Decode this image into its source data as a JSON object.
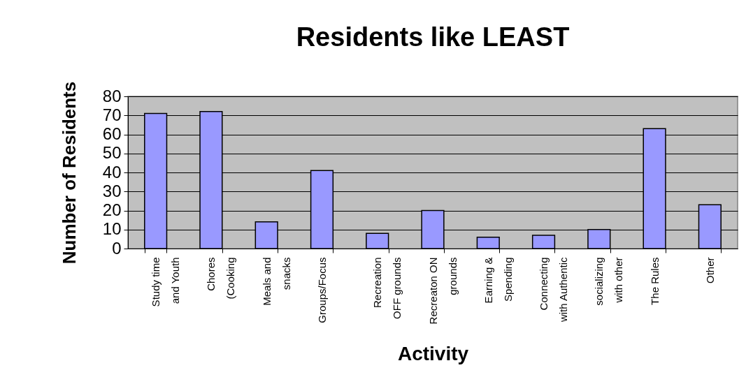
{
  "chart_data": {
    "type": "bar",
    "title": "Residents like LEAST",
    "xlabel": "Activity",
    "ylabel": "Number of Residents",
    "categories": [
      "Study time\nand Youth",
      "Chores\n(Cooking",
      "Meals and\nsnacks",
      "Groups/Focus",
      "Recreation\nOFF grounds",
      "Recreaton ON\ngrounds",
      "Earning &\nSpending",
      "Connecting\nwith Authentic",
      "socializing\nwith other",
      "The Rules",
      "Other"
    ],
    "values": [
      71,
      72,
      14,
      41,
      8,
      20,
      6,
      7,
      10,
      63,
      23
    ],
    "color": "#9999ff",
    "ylim": [
      0,
      80
    ],
    "yticks": [
      0,
      10,
      20,
      30,
      40,
      50,
      60,
      70,
      80
    ],
    "grid": "y"
  }
}
